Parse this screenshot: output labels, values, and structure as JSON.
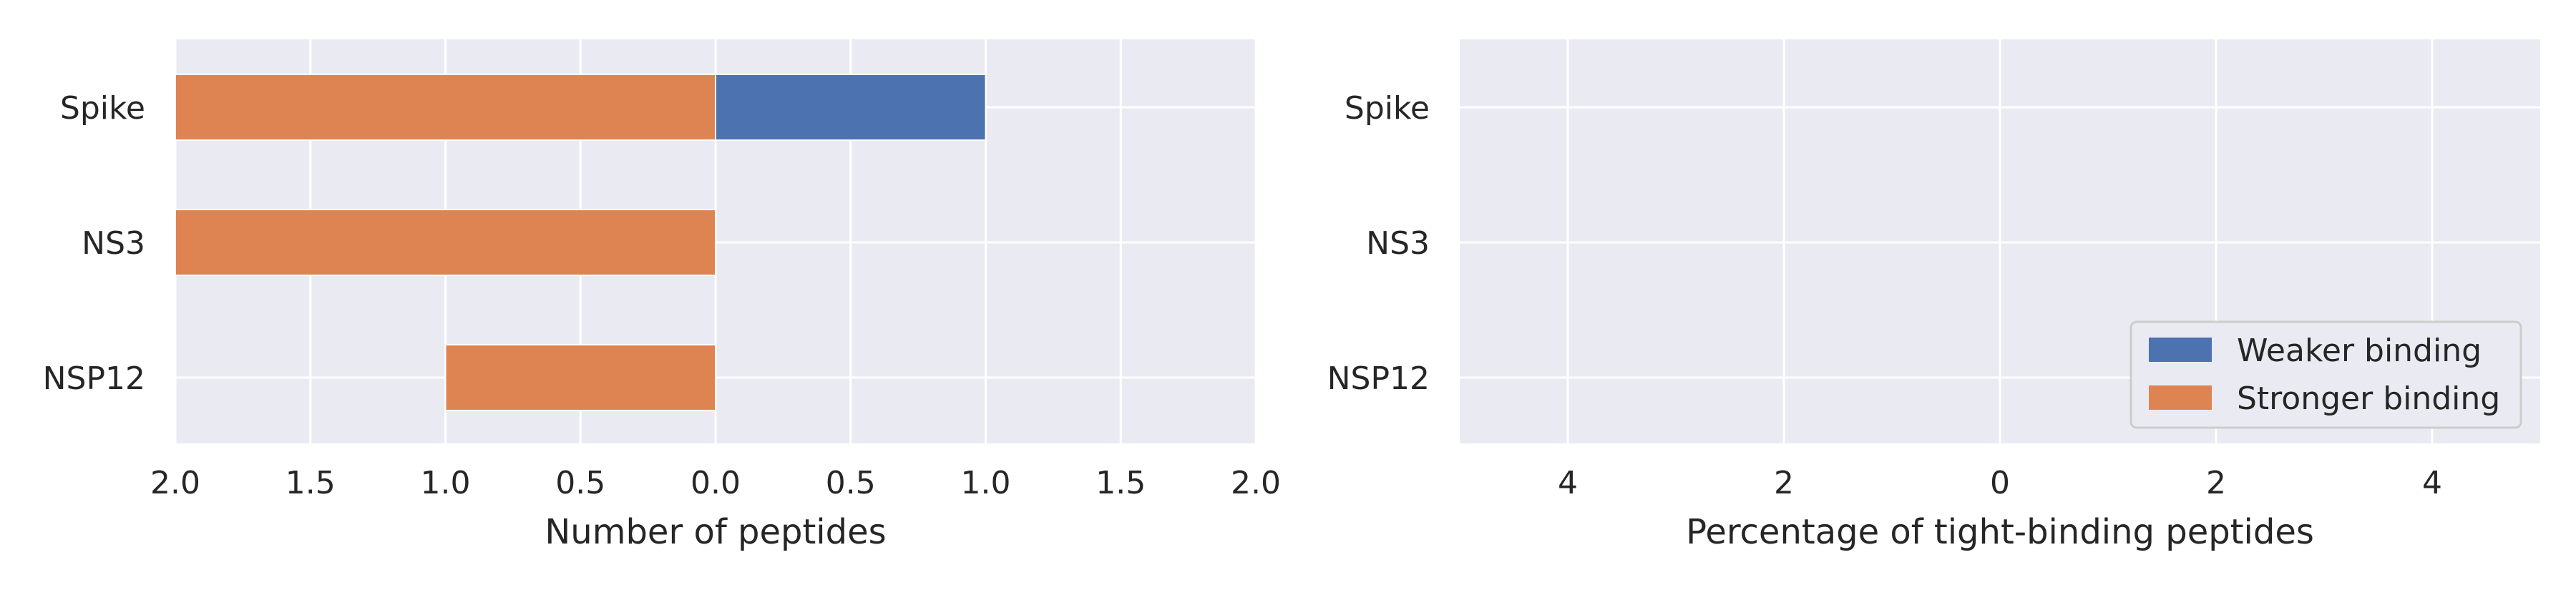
{
  "chart_data": [
    {
      "type": "bar",
      "orientation": "horizontal",
      "diverging": true,
      "categories": [
        "Spike",
        "NS3",
        "NSP12"
      ],
      "series": [
        {
          "name": "Weaker binding",
          "side": "positive",
          "color": "#4c72b0",
          "values": [
            1,
            0,
            0
          ]
        },
        {
          "name": "Stronger binding",
          "side": "negative",
          "color": "#dd8452",
          "values": [
            2,
            2,
            1
          ]
        }
      ],
      "xlabel": "Number of peptides",
      "xlim": [
        -2,
        2
      ],
      "xticks": [
        -2,
        -1.5,
        -1,
        -0.5,
        0,
        0.5,
        1,
        1.5,
        2
      ],
      "xtick_labels": [
        "2.0",
        "1.5",
        "1.0",
        "0.5",
        "0.0",
        "0.5",
        "1.0",
        "1.5",
        "2.0"
      ],
      "grid": true,
      "background": "#eaeaf2"
    },
    {
      "type": "bar",
      "orientation": "horizontal",
      "diverging": true,
      "categories": [
        "Spike",
        "NS3",
        "NSP12"
      ],
      "series": [
        {
          "name": "Weaker binding",
          "side": "positive",
          "color": "#4c72b0",
          "values": [
            0,
            0,
            0
          ]
        },
        {
          "name": "Stronger binding",
          "side": "negative",
          "color": "#dd8452",
          "values": [
            0,
            0,
            0
          ]
        }
      ],
      "xlabel": "Percentage of tight-binding peptides",
      "xlim": [
        -5,
        5
      ],
      "xticks": [
        -4,
        -2,
        0,
        2,
        4
      ],
      "xtick_labels": [
        "4",
        "2",
        "0",
        "2",
        "4"
      ],
      "grid": true,
      "background": "#eaeaf2",
      "legend": {
        "placement": "lower-right",
        "entries": [
          {
            "label": "Weaker binding",
            "color": "#4c72b0"
          },
          {
            "label": "Stronger binding",
            "color": "#dd8452"
          }
        ]
      }
    }
  ]
}
